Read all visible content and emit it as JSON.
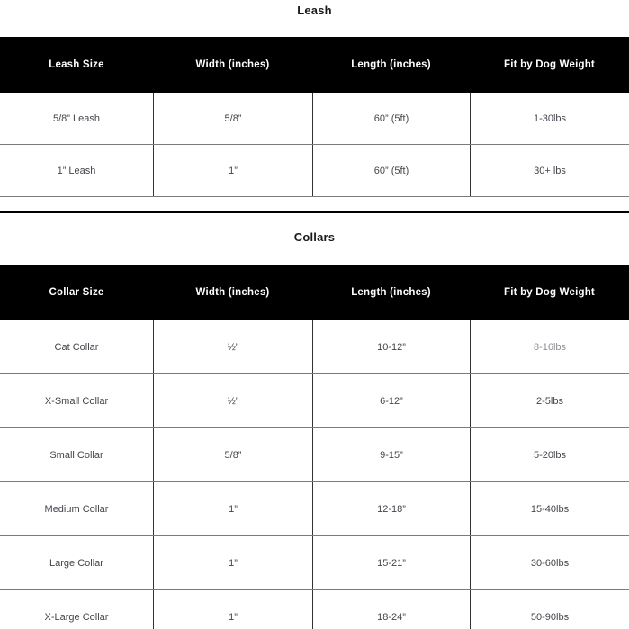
{
  "colors": {
    "header_bg": "#000000",
    "header_text": "#ffffff",
    "body_text": "#44444c",
    "muted_text": "#8e8e96",
    "row_border": "#7b7b7b",
    "col_border": "#333333",
    "divider": "#000000",
    "page_bg": "#ffffff"
  },
  "leash_section": {
    "title": "Leash",
    "columns": [
      "Leash Size",
      "Width (inches)",
      "Length (inches)",
      "Fit by Dog Weight"
    ],
    "rows": [
      {
        "size": "5/8” Leash",
        "width": "5/8”",
        "length": "60” (5ft)",
        "weight": "1-30lbs"
      },
      {
        "size": "1” Leash",
        "width": "1”",
        "length": "60” (5ft)",
        "weight": "30+ lbs"
      }
    ]
  },
  "collars_section": {
    "title": "Collars",
    "columns": [
      "Collar Size",
      "Width (inches)",
      "Length (inches)",
      "Fit by Dog Weight"
    ],
    "rows": [
      {
        "size": "Cat Collar",
        "width": "½”",
        "length": "10-12”",
        "weight": "8-16lbs"
      },
      {
        "size": "X-Small Collar",
        "width": "½”",
        "length": "6-12”",
        "weight": "2-5lbs"
      },
      {
        "size": "Small Collar",
        "width": "5/8”",
        "length": "9-15”",
        "weight": "5-20lbs"
      },
      {
        "size": "Medium Collar",
        "width": "1”",
        "length": "12-18”",
        "weight": "15-40lbs"
      },
      {
        "size": "Large Collar",
        "width": "1”",
        "length": "15-21”",
        "weight": "30-60lbs"
      },
      {
        "size": "X-Large Collar",
        "width": "1”",
        "length": "18-24”",
        "weight": "50-90lbs"
      }
    ]
  }
}
